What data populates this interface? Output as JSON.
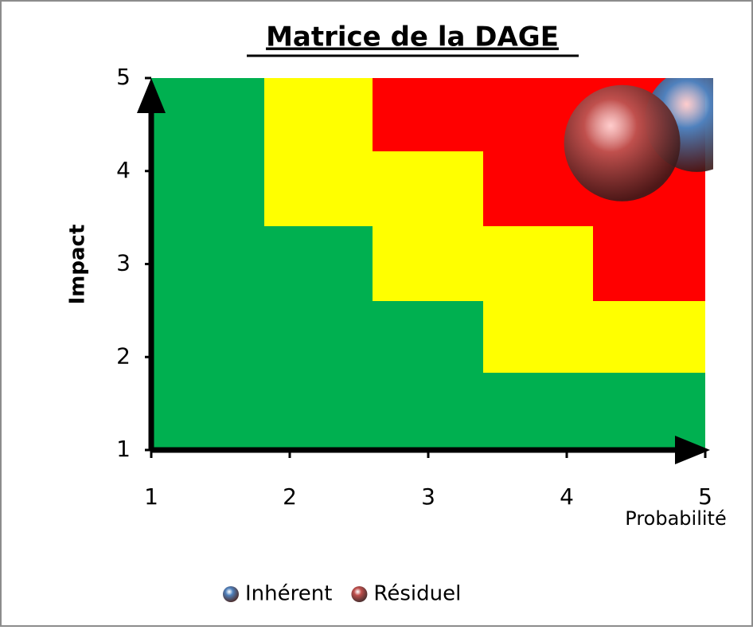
{
  "chart_data": {
    "type": "bubble",
    "title": "Matrice de la DAGE",
    "x_label": "Probabilité",
    "y_label": "Impact",
    "xlim": [
      1,
      5
    ],
    "ylim": [
      1,
      5
    ],
    "xticks": [
      1,
      2,
      3,
      4,
      5
    ],
    "yticks": [
      1,
      2,
      3,
      4,
      5
    ],
    "series": [
      {
        "name": "Inhérent",
        "color": "#4f81bd",
        "x": [
          4.94
        ],
        "values": [
          4.55
        ],
        "sizes": [
          0.8
        ]
      },
      {
        "name": "Résiduel",
        "color": "#c0504d",
        "x": [
          4.4
        ],
        "values": [
          4.3
        ],
        "sizes": [
          1
        ]
      }
    ]
  }
}
